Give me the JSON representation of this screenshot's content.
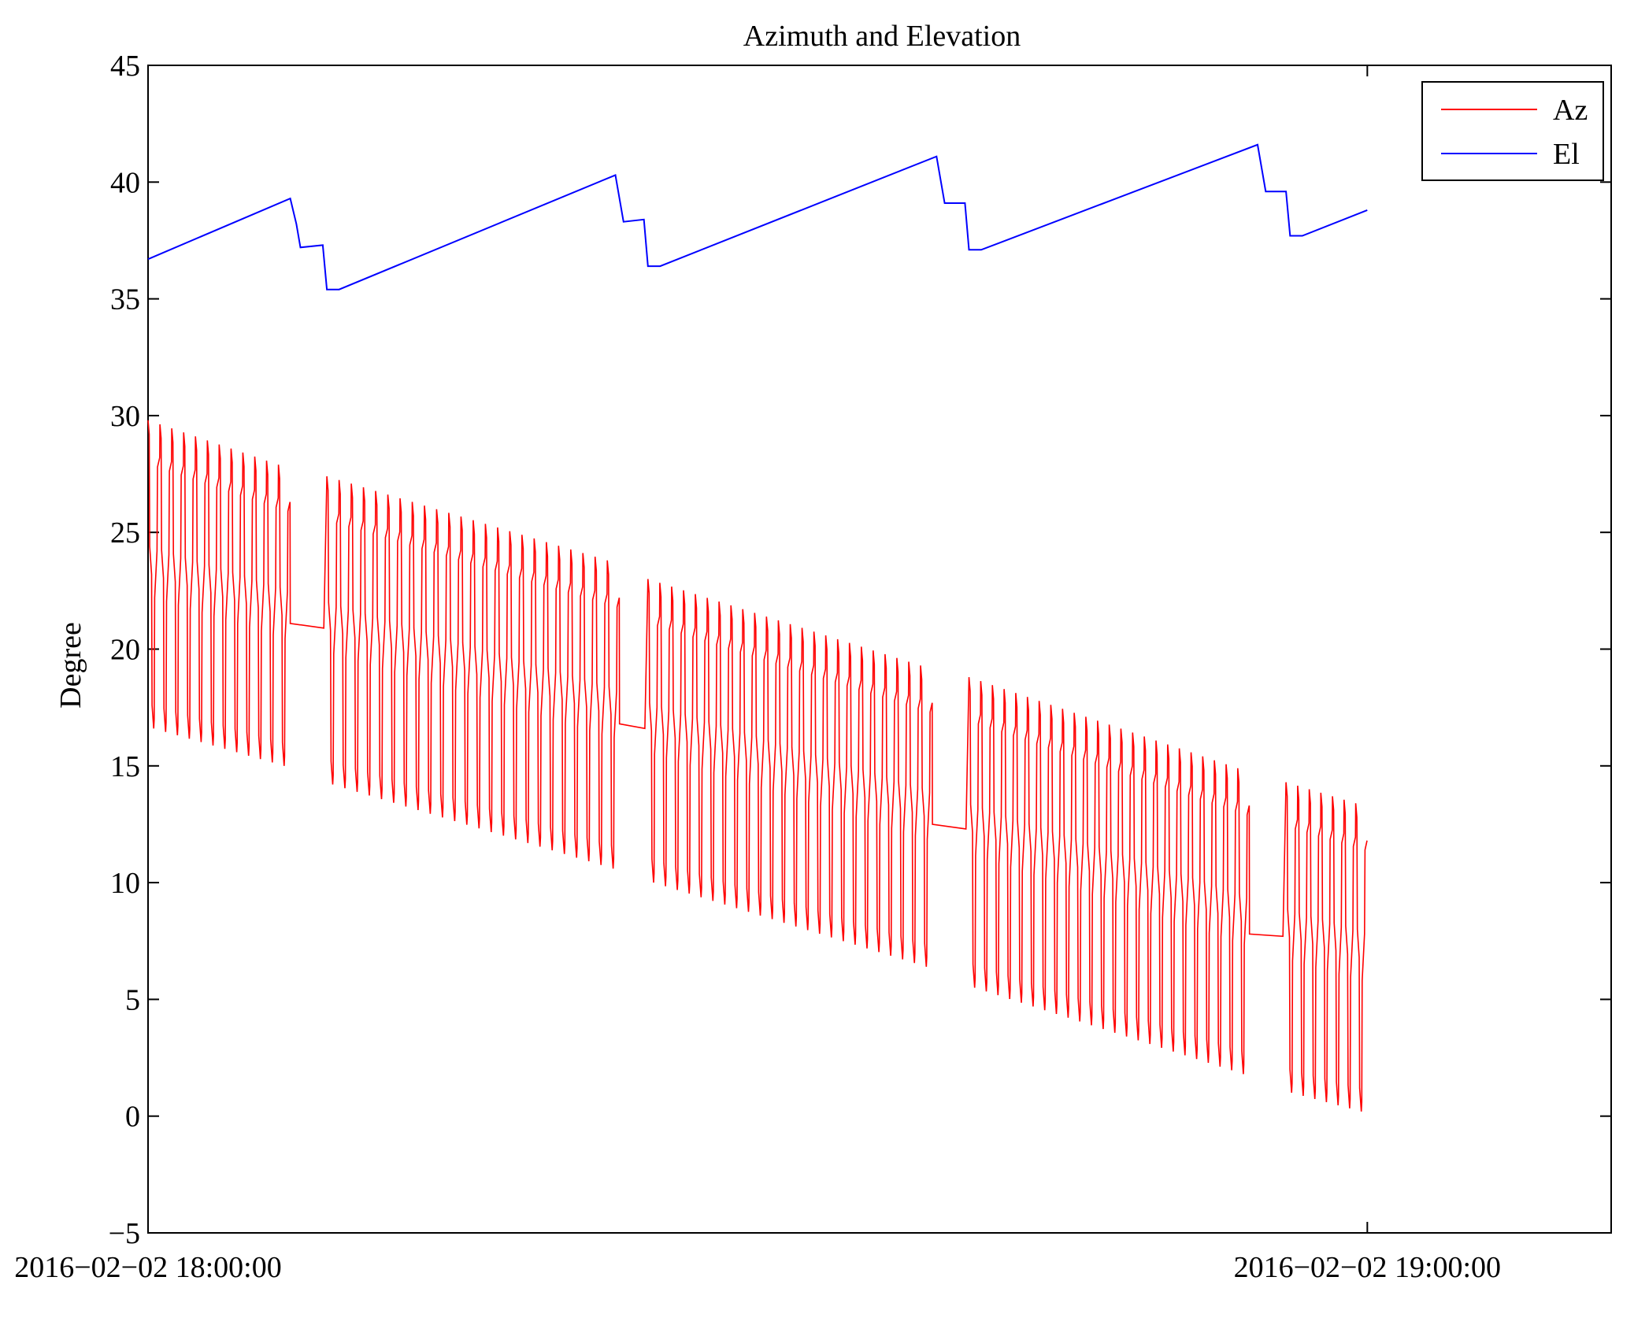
{
  "chart_data": {
    "type": "line",
    "title": "Azimuth and Elevation",
    "xlabel": "",
    "ylabel": "Degree",
    "ylim": [
      -5,
      45
    ],
    "yticks": [
      -5,
      0,
      5,
      10,
      15,
      20,
      25,
      30,
      35,
      40,
      45
    ],
    "xlim_minutes": [
      0,
      72
    ],
    "xticks": [
      {
        "minute": 0,
        "label": "2016−02−02 18:00:00"
      },
      {
        "minute": 60,
        "label": "2016−02−02 19:00:00"
      }
    ],
    "legend_position": "top-right",
    "series": [
      {
        "name": "Az",
        "color": "#ff0000",
        "style": "sawtooth oscillation; each segment decays slowly and is followed by a plateau",
        "segments": [
          {
            "t_start": 0.0,
            "t_end": 7.0,
            "upper": [
              29.8,
              27.9
            ],
            "lower": [
              16.6,
              15.0
            ],
            "cycles": 12
          },
          {
            "t_start": 7.0,
            "t_end": 8.8,
            "flat": 21.1,
            "end": 20.9
          },
          {
            "t_start": 8.8,
            "t_end": 23.2,
            "upper": [
              27.4,
              23.8
            ],
            "lower": [
              14.2,
              10.6
            ],
            "cycles": 24
          },
          {
            "t_start": 23.2,
            "t_end": 24.6,
            "flat": 16.8,
            "end": 16.6
          },
          {
            "t_start": 24.6,
            "t_end": 38.6,
            "upper": [
              23.0,
              19.3
            ],
            "lower": [
              10.0,
              6.4
            ],
            "cycles": 24
          },
          {
            "t_start": 38.6,
            "t_end": 40.4,
            "flat": 12.5,
            "end": 12.3
          },
          {
            "t_start": 40.4,
            "t_end": 54.2,
            "upper": [
              18.8,
              14.9
            ],
            "lower": [
              5.5,
              1.8
            ],
            "cycles": 24
          },
          {
            "t_start": 54.2,
            "t_end": 56.0,
            "flat": 7.8,
            "end": 7.7
          },
          {
            "t_start": 56.0,
            "t_end": 60.0,
            "upper": [
              14.3,
              13.4
            ],
            "lower": [
              1.0,
              0.2
            ],
            "cycles": 7
          }
        ]
      },
      {
        "name": "El",
        "color": "#0000ff",
        "style": "slow rising ramps with step drops",
        "points": [
          [
            0.0,
            36.7
          ],
          [
            7.0,
            39.3
          ],
          [
            7.3,
            38.2
          ],
          [
            7.5,
            37.2
          ],
          [
            8.6,
            37.3
          ],
          [
            8.8,
            35.4
          ],
          [
            9.4,
            35.4
          ],
          [
            23.0,
            40.3
          ],
          [
            23.4,
            38.3
          ],
          [
            24.4,
            38.4
          ],
          [
            24.6,
            36.4
          ],
          [
            25.2,
            36.4
          ],
          [
            38.8,
            41.1
          ],
          [
            39.2,
            39.1
          ],
          [
            40.2,
            39.1
          ],
          [
            40.4,
            37.1
          ],
          [
            41.0,
            37.1
          ],
          [
            54.6,
            41.6
          ],
          [
            55.0,
            39.6
          ],
          [
            56.0,
            39.6
          ],
          [
            56.2,
            37.7
          ],
          [
            56.8,
            37.7
          ],
          [
            60.0,
            38.8
          ]
        ]
      }
    ]
  }
}
